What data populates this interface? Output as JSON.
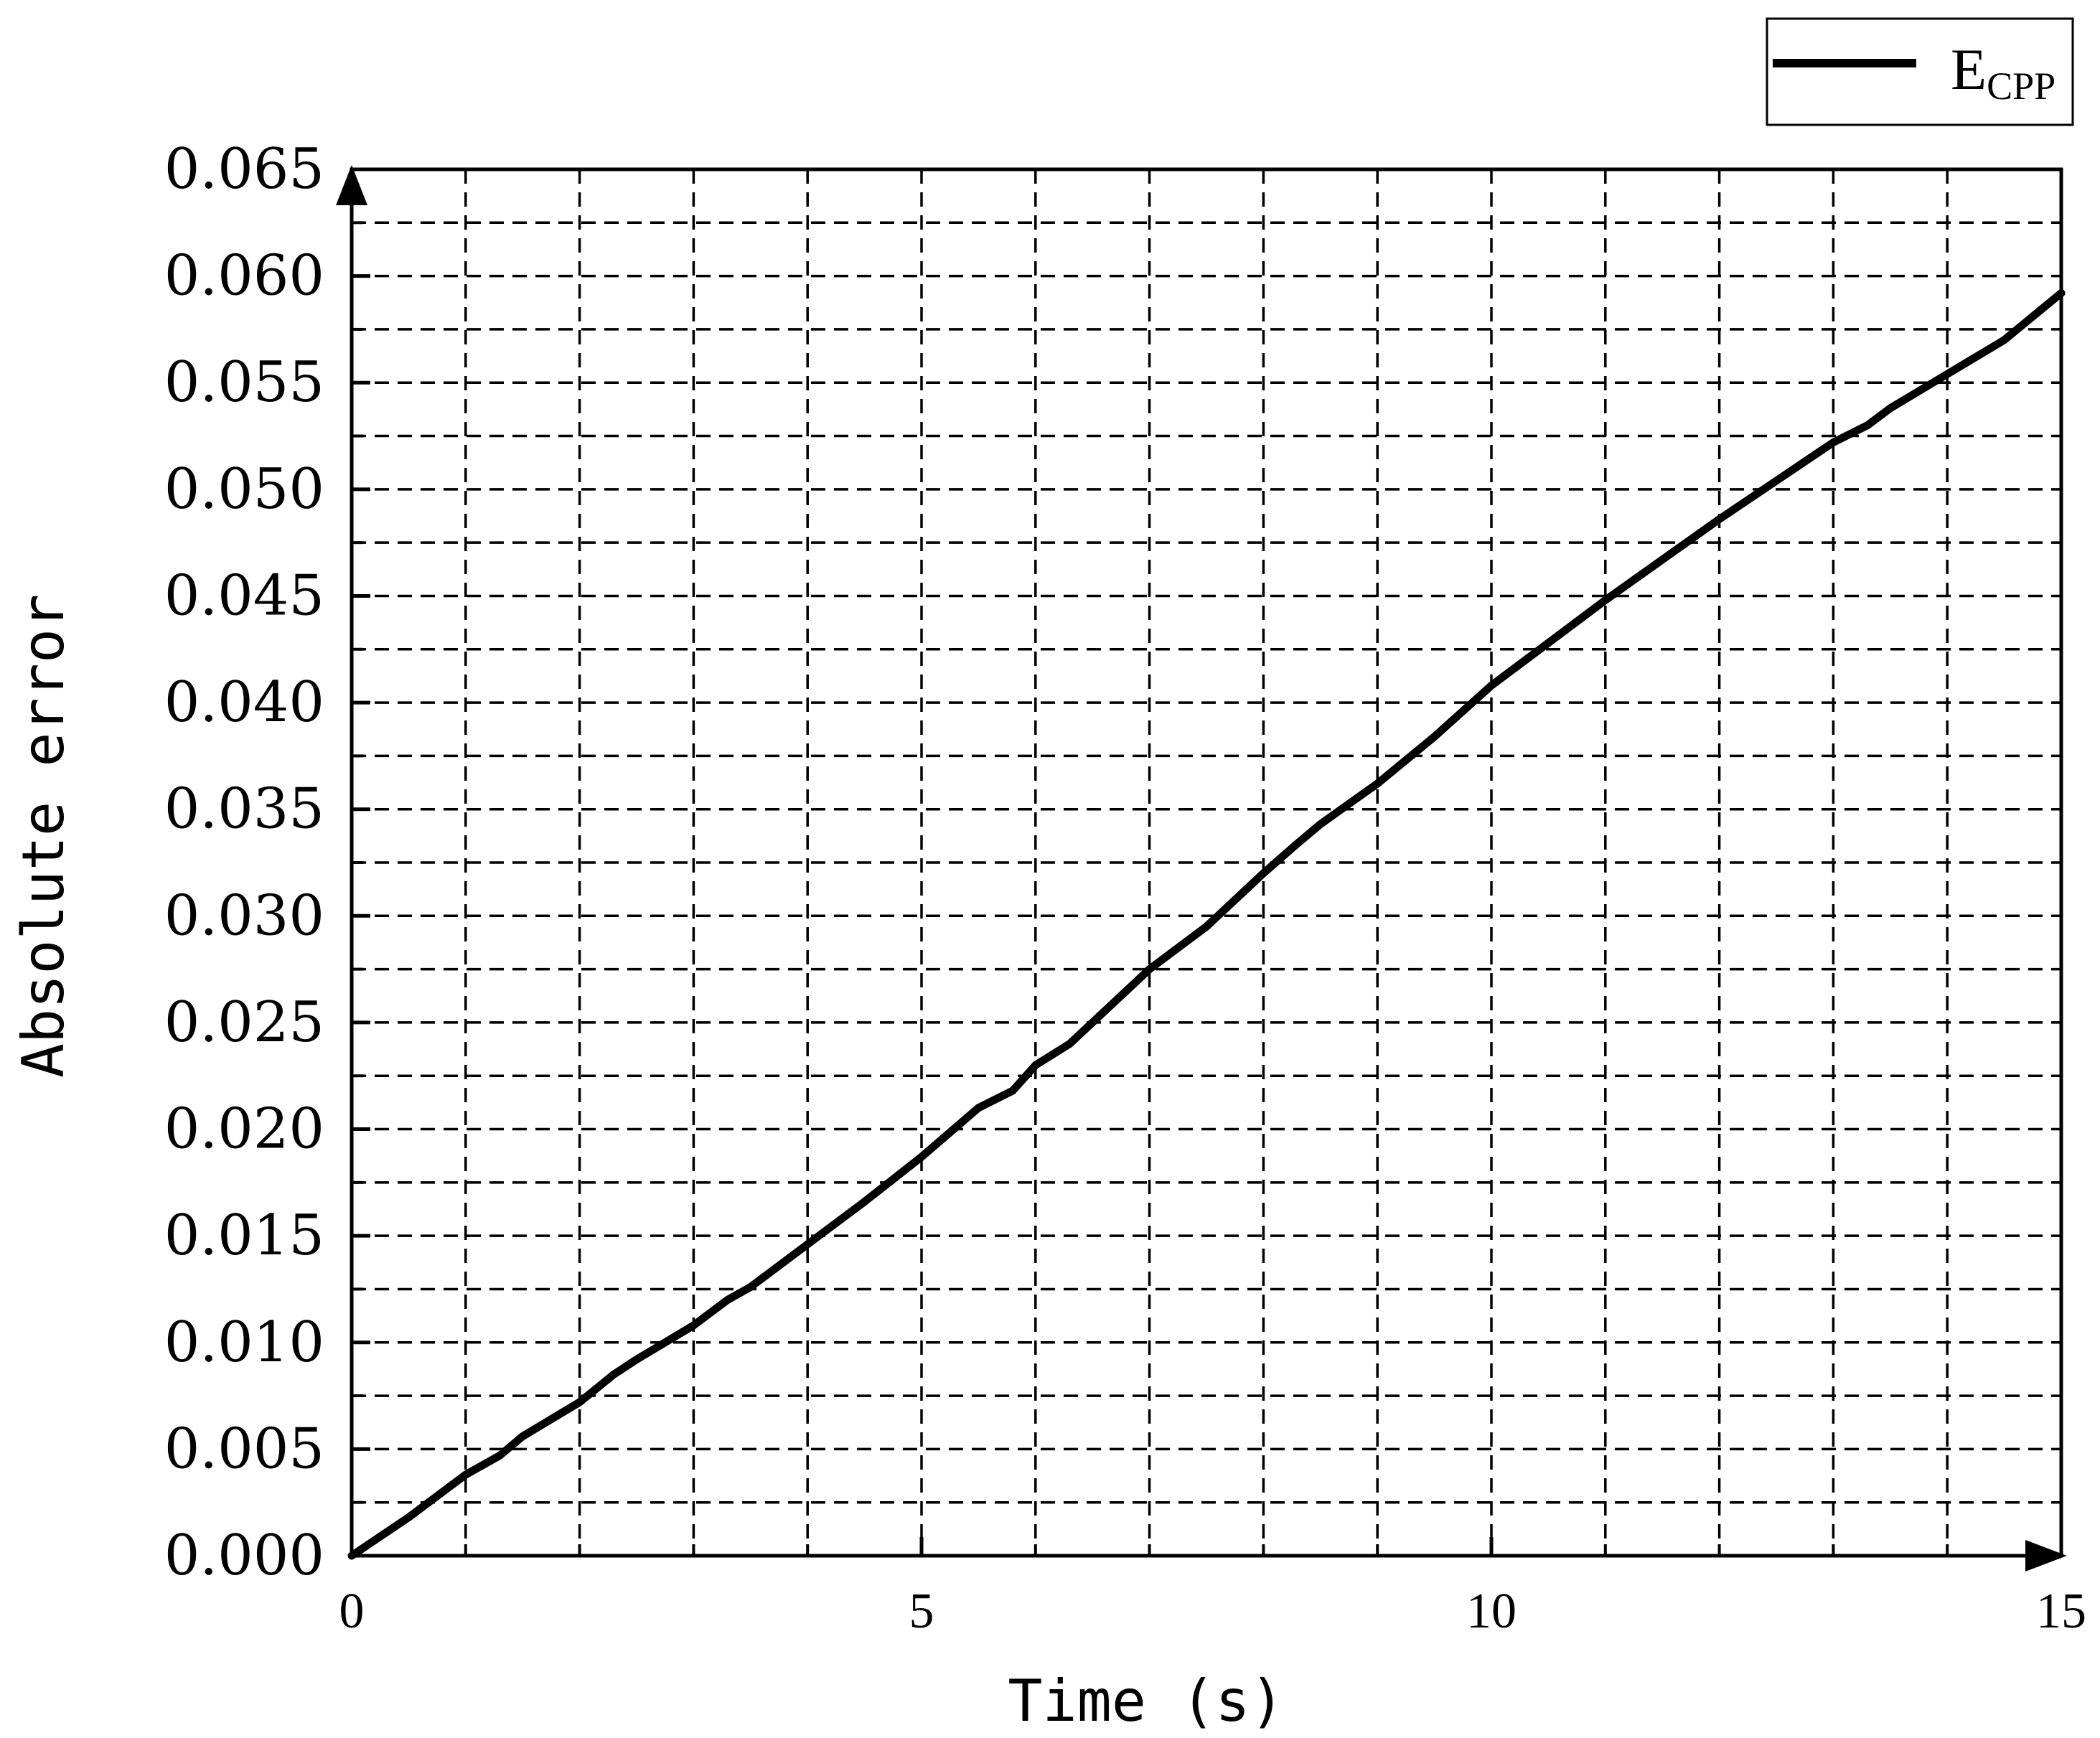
{
  "chart_data": {
    "type": "line",
    "xlabel": "Time (s)",
    "ylabel": "Absolute error",
    "xlim": [
      0,
      15
    ],
    "ylim": [
      0,
      0.065
    ],
    "x_ticks": [
      0,
      5,
      10,
      15
    ],
    "x_tick_labels": [
      "0",
      "5",
      "10",
      "15"
    ],
    "x_minor_ticks": [
      1,
      2,
      3,
      4,
      6,
      7,
      8,
      9,
      11,
      12,
      13,
      14
    ],
    "y_ticks": [
      0,
      0.005,
      0.01,
      0.015,
      0.02,
      0.025,
      0.03,
      0.035,
      0.04,
      0.045,
      0.05,
      0.055,
      0.06,
      0.065
    ],
    "y_tick_labels": [
      "0.000",
      "0.005",
      "0.010",
      "0.015",
      "0.020",
      "0.025",
      "0.030",
      "0.035",
      "0.040",
      "0.045",
      "0.050",
      "0.055",
      "0.060",
      "0.065"
    ],
    "y_minor_ticks": [
      0.0025,
      0.0075,
      0.0125,
      0.0175,
      0.0225,
      0.0275,
      0.0325,
      0.0375,
      0.0425,
      0.0475,
      0.0525,
      0.0575,
      0.0625
    ],
    "grid": true,
    "grid_style": "dashed",
    "axis_arrows": true,
    "legend": {
      "position": "top-right",
      "label_main": "E",
      "label_sub": "CPP"
    },
    "series": [
      {
        "name": "ECPP",
        "color": "#000000",
        "x": [
          0,
          0.5,
          1.0,
          1.3,
          1.5,
          2.0,
          2.3,
          2.5,
          3.0,
          3.3,
          3.5,
          4.0,
          4.5,
          5.0,
          5.5,
          5.8,
          6.0,
          6.3,
          6.5,
          7.0,
          7.5,
          8.0,
          8.3,
          8.5,
          9.0,
          9.5,
          10.0,
          10.5,
          11.0,
          11.5,
          12.0,
          12.5,
          13.0,
          13.3,
          13.5,
          14.0,
          14.5,
          15.0
        ],
        "y": [
          0.0,
          0.0018,
          0.0038,
          0.0047,
          0.0056,
          0.0072,
          0.0085,
          0.0092,
          0.0108,
          0.012,
          0.0126,
          0.0146,
          0.0166,
          0.0187,
          0.021,
          0.0218,
          0.023,
          0.024,
          0.025,
          0.0275,
          0.0295,
          0.032,
          0.0334,
          0.0343,
          0.0362,
          0.0384,
          0.0408,
          0.0428,
          0.0448,
          0.0467,
          0.0486,
          0.0504,
          0.0522,
          0.053,
          0.0538,
          0.0554,
          0.057,
          0.0592
        ]
      }
    ]
  }
}
